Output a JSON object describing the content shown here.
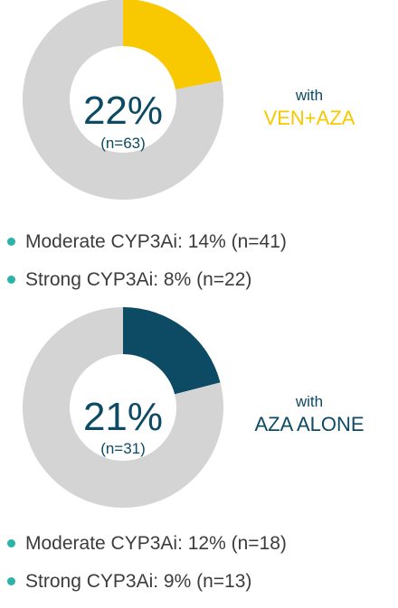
{
  "colors": {
    "track": "#d4d4d4",
    "ven_aza": "#f8c800",
    "aza_alone": "#0d4a63",
    "center_text": "#0d4a63",
    "bullet_dot": "#2ab3a8",
    "bullet_text": "#3c3c3c"
  },
  "chart_data": [
    {
      "type": "pie",
      "center_value": "22%",
      "center_n": "(n=63)",
      "label_with": "with",
      "label_regimen": "VEN+AZA",
      "slices": [
        {
          "value": 22,
          "color": "#f8c800"
        },
        {
          "value": 78,
          "color": "#d4d4d4"
        }
      ],
      "bullets": [
        "Moderate CYP3Ai: 14% (n=41)",
        "Strong CYP3Ai: 8% (n=22)"
      ]
    },
    {
      "type": "pie",
      "center_value": "21%",
      "center_n": "(n=31)",
      "label_with": "with",
      "label_regimen": "AZA ALONE",
      "slices": [
        {
          "value": 21,
          "color": "#0d4a63"
        },
        {
          "value": 79,
          "color": "#d4d4d4"
        }
      ],
      "bullets": [
        "Moderate CYP3Ai: 12% (n=18)",
        "Strong CYP3Ai: 9% (n=13)"
      ]
    }
  ]
}
